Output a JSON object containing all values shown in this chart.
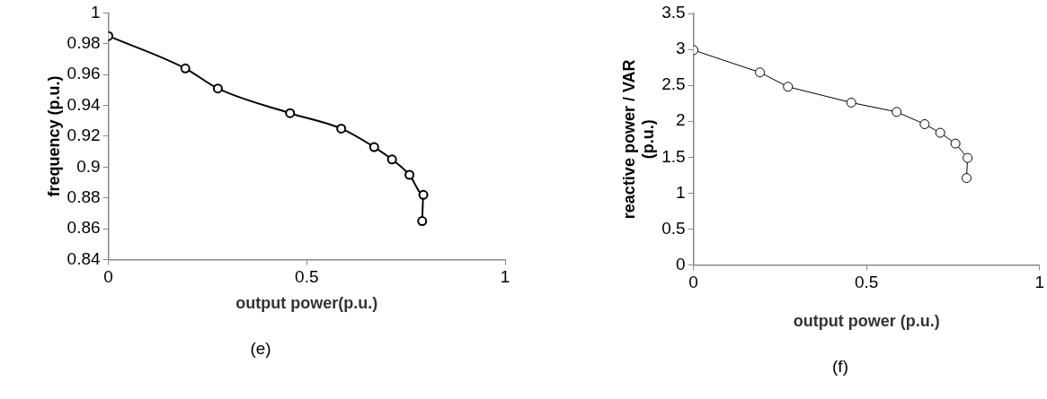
{
  "chart_data": [
    {
      "type": "line",
      "xlabel": "output power(p.u.)",
      "ylabel": "frequency (p.u.)",
      "annotations": [
        "(e)"
      ],
      "x": [
        0,
        0.194,
        0.276,
        0.458,
        0.587,
        0.67,
        0.715,
        0.759,
        0.794,
        0.791
      ],
      "series": [
        {
          "color": "#000000",
          "values": [
            0.985,
            0.964,
            0.951,
            0.935,
            0.925,
            0.913,
            0.905,
            0.895,
            0.882,
            0.865
          ]
        }
      ],
      "xlim": [
        0,
        1
      ],
      "xticks": [
        0,
        0.5,
        1
      ],
      "ylim": [
        0.84,
        1
      ],
      "yticks": [
        0.84,
        0.86,
        0.88,
        0.9,
        0.92,
        0.94,
        0.96,
        0.98,
        1
      ],
      "grid": false,
      "legend": false,
      "marker": "circle",
      "line_style": "solid"
    },
    {
      "type": "line",
      "xlabel": "output power (p.u.)",
      "ylabel": "reactive power / VAR (p.u.)",
      "annotations": [
        "(f)"
      ],
      "x": [
        0,
        0.192,
        0.273,
        0.456,
        0.587,
        0.668,
        0.713,
        0.757,
        0.792,
        0.789
      ],
      "series": [
        {
          "color": "#000000",
          "values": [
            2.99,
            2.68,
            2.48,
            2.26,
            2.13,
            1.96,
            1.84,
            1.69,
            1.49,
            1.21
          ]
        }
      ],
      "xlim": [
        0,
        1
      ],
      "xticks": [
        0,
        0.5,
        1
      ],
      "ylim": [
        0,
        3.5
      ],
      "yticks": [
        0,
        0.5,
        1,
        1.5,
        2,
        2.5,
        3,
        3.5
      ],
      "grid": false,
      "legend": false,
      "marker": "circle",
      "line_style": "solid"
    }
  ]
}
